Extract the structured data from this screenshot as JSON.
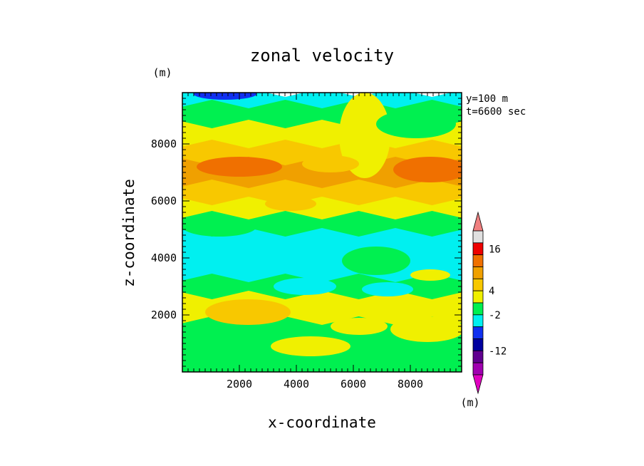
{
  "chart_data": {
    "type": "heatmap",
    "title": "zonal velocity",
    "xlabel": "x-coordinate",
    "ylabel": "z-coordinate",
    "y_unit_label": "(m)",
    "x_unit_label": "(m)",
    "annotation_lines": [
      "y=100 m",
      "t=6600 sec"
    ],
    "xlim": [
      0,
      9800
    ],
    "ylim": [
      0,
      9800
    ],
    "x_ticks": [
      "2000",
      "4000",
      "6000",
      "8000"
    ],
    "y_ticks": [
      "2000",
      "4000",
      "6000",
      "8000"
    ],
    "x_tick_values": [
      2000,
      4000,
      6000,
      8000
    ],
    "y_tick_values": [
      2000,
      4000,
      6000,
      8000
    ],
    "grid": false,
    "colorbar": {
      "labels": [
        "16",
        "4",
        "-2",
        "-12"
      ],
      "bins": [
        {
          "color": "#f08080",
          "range": "above 20"
        },
        {
          "color": "#e0e0e0",
          "range": "16 to 20"
        },
        {
          "color": "#ee0000",
          "range": "12 to 16"
        },
        {
          "color": "#f07000",
          "range": "8 to 12"
        },
        {
          "color": "#f0a000",
          "range": "6 to 8"
        },
        {
          "color": "#f8c800",
          "range": "4 to 6"
        },
        {
          "color": "#f0f000",
          "range": "2 to 4"
        },
        {
          "color": "#00f050",
          "range": "-2 to 2"
        },
        {
          "color": "#00f0f0",
          "range": "-4 to -2"
        },
        {
          "color": "#1030f0",
          "range": "-8 to -4"
        },
        {
          "color": "#0000a0",
          "range": "-12 to -8"
        },
        {
          "color": "#600090",
          "range": "-16 to -12"
        },
        {
          "color": "#a000b0",
          "range": "-20 to -16"
        },
        {
          "color": "#e000c0",
          "range": "below -20"
        }
      ]
    },
    "field_bands": [
      {
        "z_top": 9800,
        "z_bottom": 9400,
        "color": "#00f0f0"
      },
      {
        "z_top": 9400,
        "z_bottom": 8700,
        "color": "#00f050"
      },
      {
        "z_top": 8700,
        "z_bottom": 8000,
        "color": "#f0f000"
      },
      {
        "z_top": 8000,
        "z_bottom": 7400,
        "color": "#f8c800"
      },
      {
        "z_top": 7400,
        "z_bottom": 6600,
        "color": "#f0a000"
      },
      {
        "z_top": 6600,
        "z_bottom": 6000,
        "color": "#f8c800"
      },
      {
        "z_top": 6000,
        "z_bottom": 5500,
        "color": "#f0f000"
      },
      {
        "z_top": 5500,
        "z_bottom": 4900,
        "color": "#00f050"
      },
      {
        "z_top": 4900,
        "z_bottom": 3300,
        "color": "#00f0f0"
      },
      {
        "z_top": 3300,
        "z_bottom": 2700,
        "color": "#00f050"
      },
      {
        "z_top": 2700,
        "z_bottom": 1800,
        "color": "#f0f000"
      },
      {
        "z_top": 1800,
        "z_bottom": 0,
        "color": "#00f050"
      }
    ],
    "field_patches": [
      {
        "x": 1500,
        "z": 9750,
        "rx": 1100,
        "rz": 200,
        "color": "#1030f0"
      },
      {
        "x": 6400,
        "z": 8300,
        "rx": 900,
        "rz": 1500,
        "color": "#f0f000"
      },
      {
        "x": 8200,
        "z": 8700,
        "rx": 1400,
        "rz": 500,
        "color": "#00f050"
      },
      {
        "x": 2000,
        "z": 7200,
        "rx": 1500,
        "rz": 350,
        "color": "#f07000"
      },
      {
        "x": 8700,
        "z": 7100,
        "rx": 1300,
        "rz": 450,
        "color": "#f07000"
      },
      {
        "x": 5200,
        "z": 7300,
        "rx": 1000,
        "rz": 300,
        "color": "#f8c800"
      },
      {
        "x": 3800,
        "z": 5900,
        "rx": 900,
        "rz": 250,
        "color": "#f8c800"
      },
      {
        "x": 1300,
        "z": 5100,
        "rx": 1300,
        "rz": 350,
        "color": "#00f050"
      },
      {
        "x": 6800,
        "z": 3900,
        "rx": 1200,
        "rz": 500,
        "color": "#00f050"
      },
      {
        "x": 4300,
        "z": 3000,
        "rx": 1100,
        "rz": 300,
        "color": "#00f0f0"
      },
      {
        "x": 7200,
        "z": 2900,
        "rx": 900,
        "rz": 250,
        "color": "#00f0f0"
      },
      {
        "x": 8700,
        "z": 3400,
        "rx": 700,
        "rz": 200,
        "color": "#f0f000"
      },
      {
        "x": 2300,
        "z": 2100,
        "rx": 1500,
        "rz": 450,
        "color": "#f8c800"
      },
      {
        "x": 8600,
        "z": 1500,
        "rx": 1300,
        "rz": 450,
        "color": "#f0f000"
      },
      {
        "x": 4500,
        "z": 900,
        "rx": 1400,
        "rz": 350,
        "color": "#f0f000"
      },
      {
        "x": 6200,
        "z": 1600,
        "rx": 1000,
        "rz": 300,
        "color": "#f0f000"
      }
    ]
  }
}
